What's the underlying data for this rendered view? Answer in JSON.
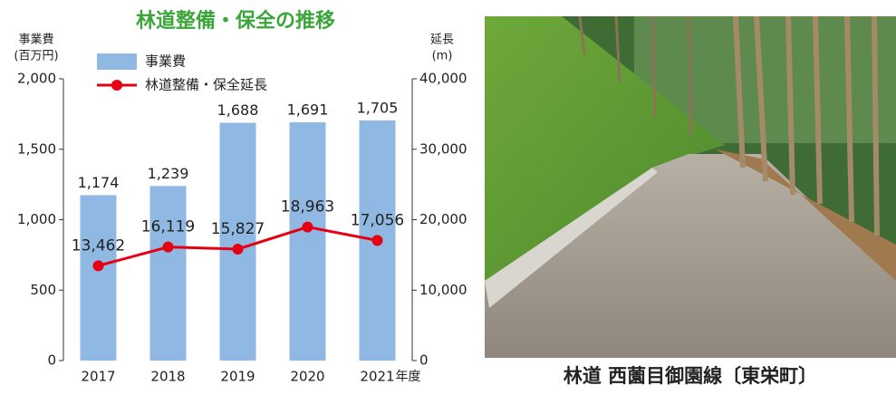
{
  "chart_data": {
    "type": "bar",
    "title": "林道整備・保全の推移",
    "y_label": [
      "事業費",
      "(百万円)"
    ],
    "y2_label": [
      "延長",
      "(m)"
    ],
    "x_label": "年度",
    "categories": [
      "2017",
      "2018",
      "2019",
      "2020",
      "2021"
    ],
    "series": [
      {
        "name": "事業費",
        "color": "#8fb9e2",
        "values": [
          1174,
          1239,
          1688,
          1691,
          1705
        ],
        "value_labels": [
          "1,174",
          "1,239",
          "1,688",
          "1,691",
          "1,705"
        ]
      },
      {
        "name": "林道整備・保全延長",
        "type": "line",
        "axis": "y2",
        "color": "#e60012",
        "values": [
          13462,
          16119,
          15827,
          18963,
          17056
        ],
        "value_labels": [
          "13,462",
          "16,119",
          "15,827",
          "18,963",
          "17,056"
        ]
      }
    ],
    "ylim": [
      0,
      2000
    ],
    "yticks": [
      0,
      500,
      {
        "value": 1000,
        "label": "1,000"
      },
      {
        "value": 1500,
        "label": "1,500"
      },
      {
        "value": 2000,
        "label": "2,000"
      }
    ],
    "y2lim": [
      0,
      40000
    ],
    "y2ticks": [
      0,
      {
        "value": 10000,
        "label": "10,000"
      },
      {
        "value": 20000,
        "label": "20,000"
      },
      {
        "value": 30000,
        "label": "30,000"
      },
      {
        "value": 40000,
        "label": "40,000"
      }
    ],
    "legend": "top-left"
  },
  "photo_caption": "林道 西薗目御園線〔東栄町〕"
}
